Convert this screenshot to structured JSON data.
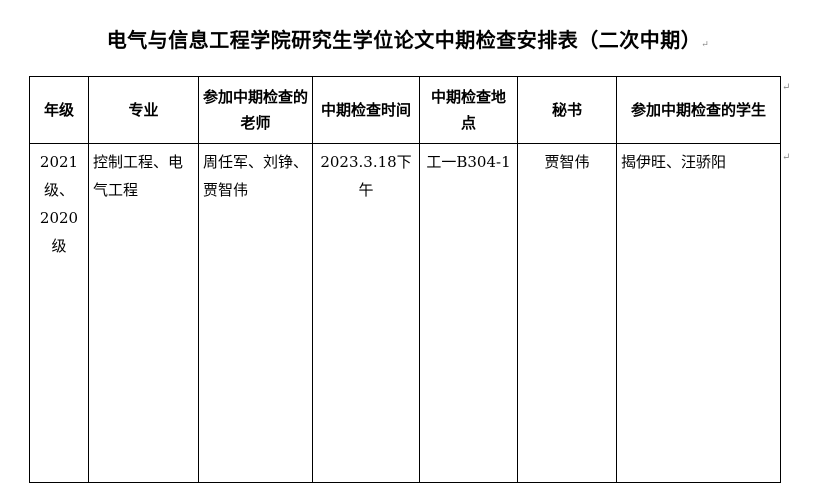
{
  "title": "电气与信息工程学院研究生学位论文中期检查安排表（二次中期）",
  "table": {
    "headers": [
      "年级",
      "专业",
      "参加中期检查的老师",
      "中期检查时间",
      "中期检查地点",
      "秘书",
      "参加中期检查的学生"
    ],
    "rows": [
      [
        "2021级、2020级",
        "控制工程、电气工程",
        "周任军、刘铮、贾智伟",
        "2023.3.18下午",
        "工一B304-1",
        "贾智伟",
        "揭伊旺、汪骄阳"
      ]
    ]
  }
}
